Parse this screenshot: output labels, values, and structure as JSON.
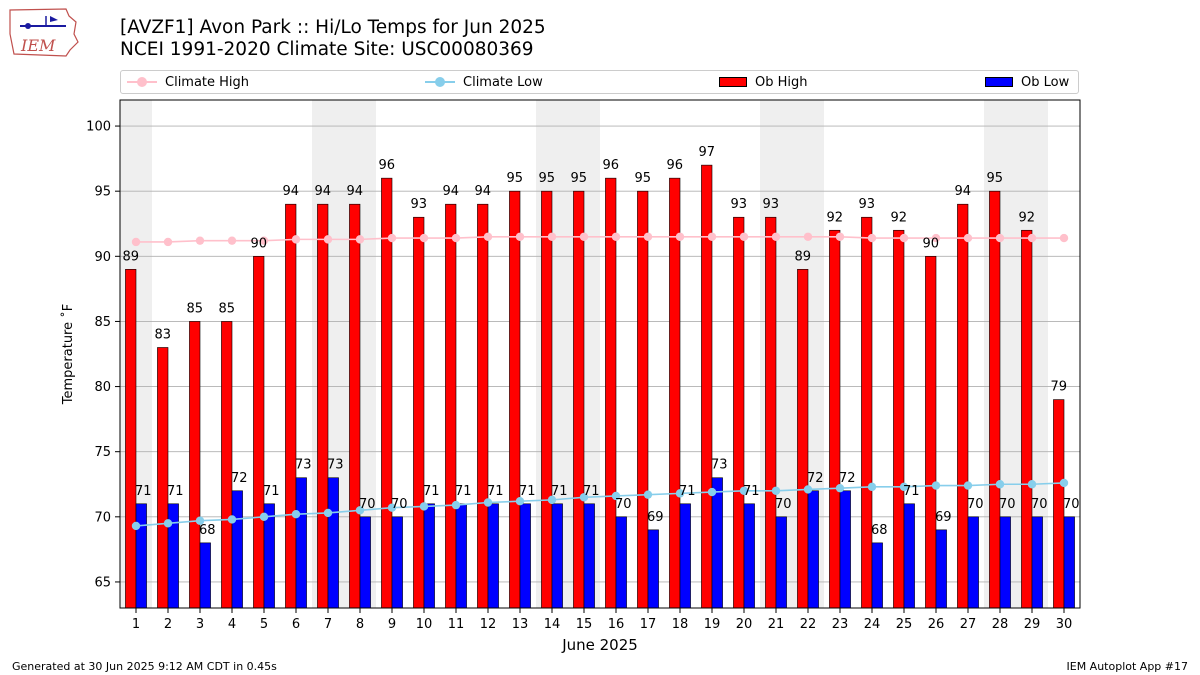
{
  "header": {
    "title": "[AVZF1] Avon Park :: Hi/Lo Temps for Jun 2025",
    "subtitle": "NCEI 1991-2020 Climate Site: USC00080369",
    "logo_text": "IEM"
  },
  "footer": {
    "left": "Generated at 30 Jun 2025 9:12 AM CDT in 0.45s",
    "right": "IEM Autoplot App #17"
  },
  "legend": {
    "climate_high": "Climate High",
    "climate_low": "Climate Low",
    "ob_high": "Ob High",
    "ob_low": "Ob Low"
  },
  "colors": {
    "ob_high": "#ff0000",
    "ob_low": "#0000ff",
    "climate_high": "#ffc0cb",
    "climate_low": "#87ceeb",
    "weekend_shade": "#efefef",
    "grid": "#b0b0b0"
  },
  "chart_data": {
    "type": "bar",
    "xlabel": "June 2025",
    "ylabel": "Temperature ˚F",
    "ylim": [
      63,
      102
    ],
    "yticks": [
      65,
      70,
      75,
      80,
      85,
      90,
      95,
      100
    ],
    "categories": [
      "1",
      "2",
      "3",
      "4",
      "5",
      "6",
      "7",
      "8",
      "9",
      "10",
      "11",
      "12",
      "13",
      "14",
      "15",
      "16",
      "17",
      "18",
      "19",
      "20",
      "21",
      "22",
      "23",
      "24",
      "25",
      "26",
      "27",
      "28",
      "29",
      "30"
    ],
    "shaded_days": [
      1,
      7,
      8,
      14,
      15,
      21,
      22,
      28,
      29
    ],
    "grid": "horizontal",
    "series": [
      {
        "name": "Ob High",
        "type": "bar",
        "values": [
          89,
          83,
          85,
          85,
          90,
          94,
          94,
          94,
          96,
          93,
          94,
          94,
          95,
          95,
          95,
          96,
          95,
          96,
          97,
          93,
          93,
          89,
          92,
          93,
          92,
          90,
          94,
          95,
          92,
          79
        ]
      },
      {
        "name": "Ob Low",
        "type": "bar",
        "values": [
          71,
          71,
          68,
          72,
          71,
          73,
          73,
          70,
          70,
          71,
          71,
          71,
          71,
          71,
          71,
          70,
          69,
          71,
          73,
          71,
          70,
          72,
          72,
          68,
          71,
          69,
          70,
          70,
          70,
          70
        ]
      },
      {
        "name": "Climate High",
        "type": "line",
        "values": [
          91.1,
          91.1,
          91.2,
          91.2,
          91.2,
          91.3,
          91.3,
          91.3,
          91.4,
          91.4,
          91.4,
          91.5,
          91.5,
          91.5,
          91.5,
          91.5,
          91.5,
          91.5,
          91.5,
          91.5,
          91.5,
          91.5,
          91.5,
          91.4,
          91.4,
          91.4,
          91.4,
          91.4,
          91.4,
          91.4
        ]
      },
      {
        "name": "Climate Low",
        "type": "line",
        "values": [
          69.3,
          69.5,
          69.7,
          69.8,
          70.0,
          70.2,
          70.3,
          70.5,
          70.7,
          70.8,
          70.9,
          71.1,
          71.2,
          71.3,
          71.5,
          71.6,
          71.7,
          71.8,
          71.9,
          72.0,
          72.0,
          72.1,
          72.2,
          72.3,
          72.3,
          72.4,
          72.4,
          72.5,
          72.5,
          72.6
        ]
      }
    ]
  }
}
